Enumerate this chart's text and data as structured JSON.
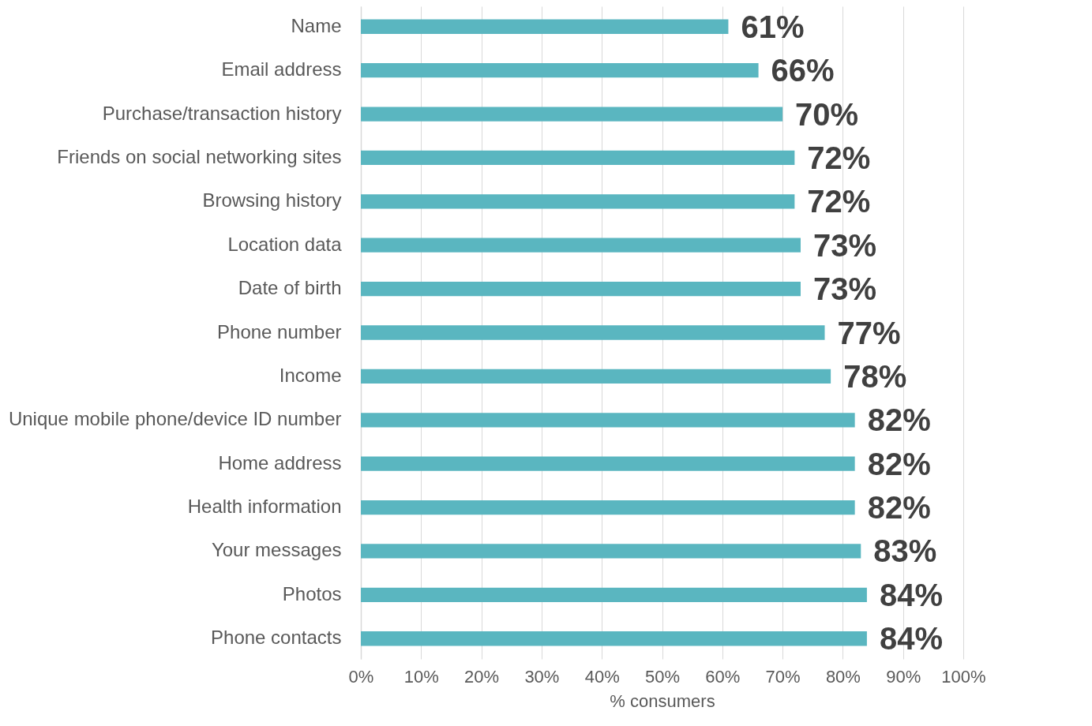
{
  "chart_data": {
    "type": "bar",
    "orientation": "horizontal",
    "xlabel": "% consumers",
    "categories": [
      "Name",
      "Email address",
      "Purchase/transaction history",
      "Friends on social networking sites",
      "Browsing history",
      "Location data",
      "Date of birth",
      "Phone number",
      "Income",
      "Unique mobile phone/device ID number",
      "Home address",
      "Health information",
      "Your messages",
      "Photos",
      "Phone contacts"
    ],
    "values": [
      61,
      66,
      70,
      72,
      72,
      73,
      73,
      77,
      78,
      82,
      82,
      82,
      83,
      84,
      84
    ],
    "value_labels": [
      "61%",
      "66%",
      "70%",
      "72%",
      "72%",
      "73%",
      "73%",
      "77%",
      "78%",
      "82%",
      "82%",
      "82%",
      "83%",
      "84%",
      "84%"
    ],
    "color": "#5ab6c0",
    "xlim": [
      0,
      100
    ],
    "xticks": [
      {
        "value": 0,
        "label": "0%"
      },
      {
        "value": 10,
        "label": "10%"
      },
      {
        "value": 20,
        "label": "20%"
      },
      {
        "value": 30,
        "label": "30%"
      },
      {
        "value": 40,
        "label": "40%"
      },
      {
        "value": 50,
        "label": "50%"
      },
      {
        "value": 60,
        "label": "60%"
      },
      {
        "value": 70,
        "label": "70%"
      },
      {
        "value": 80,
        "label": "80%"
      },
      {
        "value": 90,
        "label": "90%"
      },
      {
        "value": 100,
        "label": "100%"
      }
    ],
    "grid": "x"
  }
}
